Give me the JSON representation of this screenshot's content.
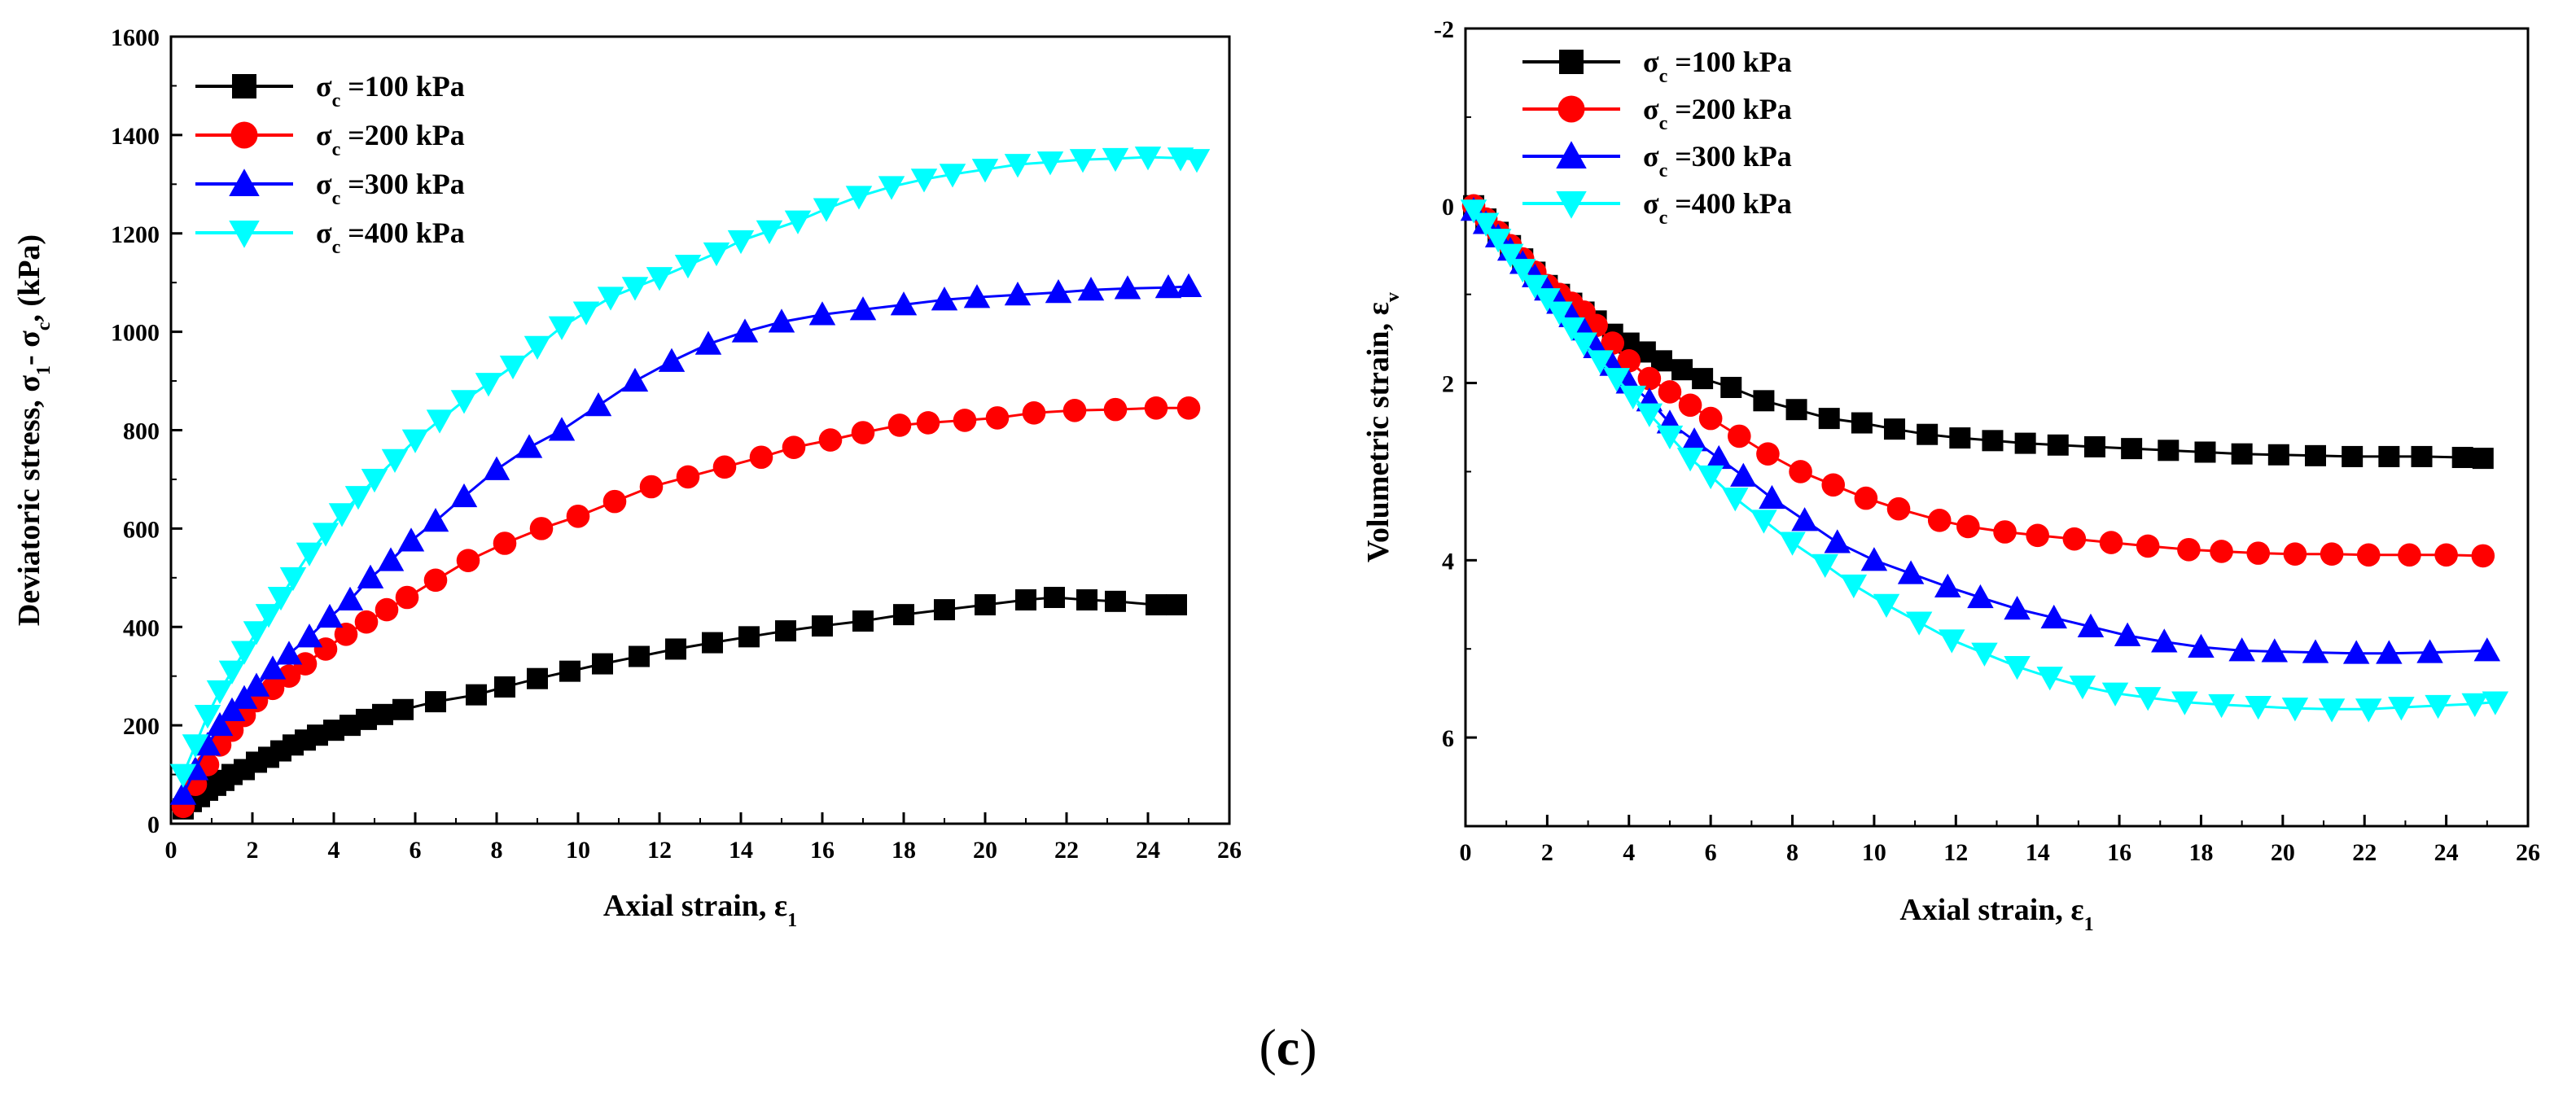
{
  "panel_label": "c",
  "chart_data": [
    {
      "type": "line",
      "id": "stress",
      "title": "",
      "xlabel": "Axial strain, ε",
      "xlabel_sub": "1",
      "ylabel_parts": [
        "Deviatoric stress, σ",
        "1",
        "- σ",
        "c",
        ", (kPa)"
      ],
      "xlim": [
        0,
        26
      ],
      "ylim": [
        0,
        1600
      ],
      "xticks": [
        0,
        2,
        4,
        6,
        8,
        10,
        12,
        14,
        16,
        18,
        20,
        22,
        24,
        26
      ],
      "yticks": [
        0,
        200,
        400,
        600,
        800,
        1000,
        1200,
        1400,
        1600
      ],
      "invert_y": false,
      "legend_position": "top-left",
      "series": [
        {
          "name": "σc =100 kPa",
          "legend_prefix": "σ",
          "legend_sub": "c",
          "legend_suffix": " =100 kPa",
          "color": "#000000",
          "marker": "square",
          "x": [
            0.3,
            0.5,
            0.7,
            0.9,
            1.1,
            1.3,
            1.5,
            1.8,
            2.1,
            2.4,
            2.7,
            3.0,
            3.3,
            3.6,
            4.0,
            4.4,
            4.8,
            5.2,
            5.7,
            6.5,
            7.5,
            8.2,
            9.0,
            9.8,
            10.6,
            11.5,
            12.4,
            13.3,
            14.2,
            15.1,
            16.0,
            17.0,
            18.0,
            19.0,
            20.0,
            21.0,
            21.7,
            22.5,
            23.2,
            24.2,
            24.7
          ],
          "y": [
            30,
            45,
            55,
            68,
            78,
            88,
            100,
            110,
            125,
            135,
            148,
            160,
            170,
            180,
            190,
            200,
            212,
            222,
            232,
            248,
            262,
            278,
            295,
            310,
            325,
            340,
            355,
            368,
            380,
            392,
            402,
            412,
            425,
            435,
            445,
            455,
            460,
            455,
            452,
            445,
            445
          ]
        },
        {
          "name": "σc =200 kPa",
          "legend_prefix": "σ",
          "legend_sub": "c",
          "legend_suffix": " =200 kPa",
          "color": "#ff0000",
          "marker": "circle",
          "x": [
            0.3,
            0.6,
            0.9,
            1.2,
            1.5,
            1.8,
            2.1,
            2.5,
            2.9,
            3.3,
            3.8,
            4.3,
            4.8,
            5.3,
            5.8,
            6.5,
            7.3,
            8.2,
            9.1,
            10.0,
            10.9,
            11.8,
            12.7,
            13.6,
            14.5,
            15.3,
            16.2,
            17.0,
            17.9,
            18.6,
            19.5,
            20.3,
            21.2,
            22.2,
            23.2,
            24.2,
            25.0
          ],
          "y": [
            35,
            80,
            120,
            160,
            190,
            220,
            250,
            275,
            300,
            325,
            355,
            385,
            410,
            435,
            460,
            495,
            535,
            570,
            600,
            625,
            655,
            685,
            705,
            725,
            745,
            765,
            780,
            795,
            810,
            815,
            820,
            825,
            835,
            840,
            842,
            845,
            845
          ]
        },
        {
          "name": "σc =300 kPa",
          "legend_prefix": "σ",
          "legend_sub": "c",
          "legend_suffix": " =300 kPa",
          "color": "#0000ff",
          "marker": "triangle-up",
          "x": [
            0.3,
            0.6,
            0.9,
            1.2,
            1.5,
            1.8,
            2.1,
            2.5,
            2.9,
            3.4,
            3.9,
            4.4,
            4.9,
            5.4,
            5.9,
            6.5,
            7.2,
            8.0,
            8.8,
            9.6,
            10.5,
            11.4,
            12.3,
            13.2,
            14.1,
            15.0,
            16.0,
            17.0,
            18.0,
            19.0,
            19.8,
            20.8,
            21.8,
            22.6,
            23.5,
            24.5,
            25.0
          ],
          "y": [
            60,
            110,
            160,
            200,
            230,
            255,
            280,
            315,
            345,
            380,
            420,
            455,
            500,
            535,
            575,
            615,
            665,
            720,
            765,
            800,
            850,
            900,
            940,
            975,
            1000,
            1020,
            1035,
            1045,
            1055,
            1065,
            1070,
            1075,
            1080,
            1085,
            1088,
            1090,
            1092
          ]
        },
        {
          "name": "σc =400 kPa",
          "legend_prefix": "σ",
          "legend_sub": "c",
          "legend_suffix": " =400 kPa",
          "color": "#00ffff",
          "marker": "triangle-down",
          "x": [
            0.3,
            0.6,
            0.9,
            1.2,
            1.5,
            1.8,
            2.1,
            2.4,
            2.7,
            3.0,
            3.4,
            3.8,
            4.2,
            4.6,
            5.0,
            5.5,
            6.0,
            6.6,
            7.2,
            7.8,
            8.4,
            9.0,
            9.6,
            10.2,
            10.8,
            11.4,
            12.0,
            12.7,
            13.4,
            14.0,
            14.7,
            15.4,
            16.1,
            16.9,
            17.7,
            18.5,
            19.2,
            20.0,
            20.8,
            21.6,
            22.4,
            23.2,
            24.0,
            24.8,
            25.2
          ],
          "y": [
            100,
            160,
            220,
            270,
            310,
            350,
            390,
            425,
            460,
            500,
            550,
            590,
            630,
            665,
            700,
            740,
            780,
            820,
            860,
            895,
            930,
            970,
            1010,
            1040,
            1070,
            1090,
            1110,
            1135,
            1160,
            1185,
            1205,
            1225,
            1250,
            1275,
            1295,
            1310,
            1320,
            1330,
            1340,
            1345,
            1350,
            1352,
            1355,
            1353,
            1350
          ]
        }
      ]
    },
    {
      "type": "line",
      "id": "volumetric",
      "title": "",
      "xlabel": "Axial strain, ε",
      "xlabel_sub": "1",
      "ylabel_parts": [
        "Volumetric strain, ε",
        "v"
      ],
      "xlim": [
        0,
        26
      ],
      "ylim": [
        -2,
        7
      ],
      "xticks": [
        0,
        2,
        4,
        6,
        8,
        10,
        12,
        14,
        16,
        18,
        20,
        22,
        24,
        26
      ],
      "yticks": [
        -2,
        0,
        2,
        4,
        6
      ],
      "invert_y": true,
      "legend_position": "top-left",
      "series": [
        {
          "name": "σc =100 kPa",
          "legend_prefix": "σ",
          "legend_sub": "c",
          "legend_suffix": " =100 kPa",
          "color": "#000000",
          "marker": "square",
          "x": [
            0.2,
            0.5,
            0.8,
            1.1,
            1.4,
            1.7,
            2.0,
            2.3,
            2.6,
            2.9,
            3.2,
            3.6,
            4.0,
            4.4,
            4.8,
            5.3,
            5.8,
            6.5,
            7.3,
            8.1,
            8.9,
            9.7,
            10.5,
            11.3,
            12.1,
            12.9,
            13.7,
            14.5,
            15.4,
            16.3,
            17.2,
            18.1,
            19.0,
            19.9,
            20.8,
            21.7,
            22.6,
            23.4,
            24.4,
            24.9
          ],
          "y": [
            0.0,
            0.15,
            0.3,
            0.45,
            0.6,
            0.75,
            0.9,
            1.0,
            1.1,
            1.2,
            1.3,
            1.45,
            1.55,
            1.65,
            1.75,
            1.85,
            1.95,
            2.05,
            2.2,
            2.3,
            2.4,
            2.45,
            2.52,
            2.58,
            2.62,
            2.65,
            2.68,
            2.7,
            2.72,
            2.74,
            2.76,
            2.78,
            2.8,
            2.81,
            2.82,
            2.83,
            2.83,
            2.83,
            2.84,
            2.85
          ]
        },
        {
          "name": "σc =200 kPa",
          "legend_prefix": "σ",
          "legend_sub": "c",
          "legend_suffix": " =200 kPa",
          "color": "#ff0000",
          "marker": "circle",
          "x": [
            0.2,
            0.5,
            0.8,
            1.1,
            1.4,
            1.7,
            2.0,
            2.3,
            2.6,
            2.9,
            3.2,
            3.6,
            4.0,
            4.5,
            5.0,
            5.5,
            6.0,
            6.7,
            7.4,
            8.2,
            9.0,
            9.8,
            10.6,
            11.6,
            12.3,
            13.2,
            14.0,
            14.9,
            15.8,
            16.7,
            17.7,
            18.5,
            19.4,
            20.3,
            21.2,
            22.1,
            23.1,
            24.0,
            24.9
          ],
          "y": [
            0.0,
            0.15,
            0.3,
            0.45,
            0.6,
            0.75,
            0.9,
            1.0,
            1.1,
            1.2,
            1.35,
            1.55,
            1.75,
            1.95,
            2.1,
            2.25,
            2.4,
            2.6,
            2.8,
            3.0,
            3.15,
            3.3,
            3.42,
            3.55,
            3.62,
            3.68,
            3.72,
            3.76,
            3.8,
            3.84,
            3.88,
            3.9,
            3.92,
            3.93,
            3.93,
            3.94,
            3.94,
            3.94,
            3.95
          ]
        },
        {
          "name": "σc =300 kPa",
          "legend_prefix": "σ",
          "legend_sub": "c",
          "legend_suffix": " =300 kPa",
          "color": "#0000ff",
          "marker": "triangle-up",
          "x": [
            0.2,
            0.5,
            0.8,
            1.1,
            1.4,
            1.7,
            2.0,
            2.3,
            2.6,
            2.9,
            3.2,
            3.6,
            4.0,
            4.5,
            5.0,
            5.6,
            6.2,
            6.8,
            7.5,
            8.3,
            9.1,
            10.0,
            10.9,
            11.8,
            12.6,
            13.5,
            14.4,
            15.3,
            16.2,
            17.1,
            18.0,
            19.0,
            19.8,
            20.8,
            21.8,
            22.6,
            23.6,
            25.0
          ],
          "y": [
            0.05,
            0.2,
            0.35,
            0.5,
            0.65,
            0.8,
            0.95,
            1.1,
            1.25,
            1.4,
            1.6,
            1.8,
            2.0,
            2.2,
            2.45,
            2.65,
            2.85,
            3.05,
            3.3,
            3.55,
            3.8,
            4.0,
            4.15,
            4.3,
            4.42,
            4.55,
            4.65,
            4.75,
            4.85,
            4.92,
            4.98,
            5.02,
            5.03,
            5.04,
            5.05,
            5.05,
            5.04,
            5.02
          ]
        },
        {
          "name": "σc =400 kPa",
          "legend_prefix": "σ",
          "legend_sub": "c",
          "legend_suffix": " =400 kPa",
          "color": "#00ffff",
          "marker": "triangle-down",
          "x": [
            0.2,
            0.5,
            0.8,
            1.1,
            1.4,
            1.7,
            2.0,
            2.3,
            2.6,
            2.9,
            3.3,
            3.7,
            4.1,
            4.5,
            5.0,
            5.5,
            6.0,
            6.6,
            7.3,
            8.0,
            8.8,
            9.5,
            10.3,
            11.1,
            11.9,
            12.7,
            13.5,
            14.3,
            15.1,
            15.9,
            16.7,
            17.6,
            18.5,
            19.4,
            20.3,
            21.2,
            22.1,
            22.9,
            23.8,
            24.7,
            25.2
          ],
          "y": [
            0.05,
            0.2,
            0.38,
            0.55,
            0.72,
            0.9,
            1.05,
            1.2,
            1.38,
            1.55,
            1.75,
            1.95,
            2.15,
            2.35,
            2.6,
            2.85,
            3.05,
            3.3,
            3.55,
            3.8,
            4.05,
            4.28,
            4.5,
            4.7,
            4.9,
            5.05,
            5.2,
            5.32,
            5.42,
            5.5,
            5.55,
            5.6,
            5.63,
            5.65,
            5.67,
            5.68,
            5.68,
            5.66,
            5.64,
            5.62,
            5.6
          ]
        }
      ]
    }
  ]
}
